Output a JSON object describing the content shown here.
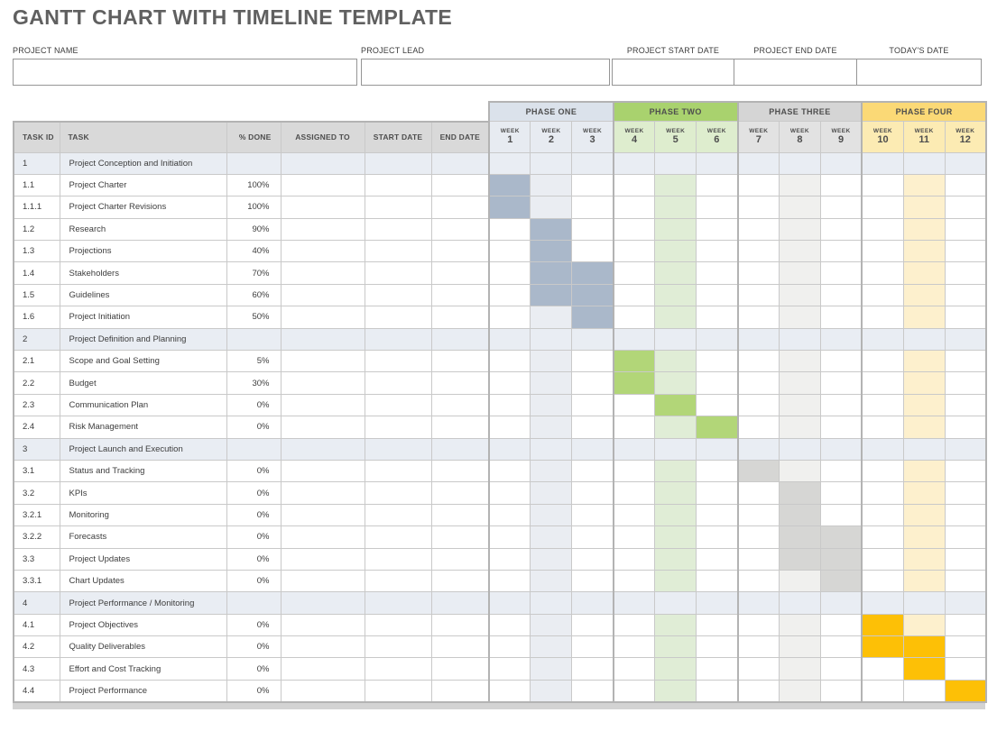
{
  "title": "GANTT CHART WITH TIMELINE TEMPLATE",
  "form": {
    "fields": [
      {
        "label": "PROJECT NAME",
        "value": ""
      },
      {
        "label": "PROJECT LEAD",
        "value": ""
      },
      {
        "label": "PROJECT START DATE",
        "value": ""
      },
      {
        "label": "PROJECT END DATE",
        "value": ""
      },
      {
        "label": "TODAY'S DATE",
        "value": ""
      }
    ]
  },
  "table": {
    "columns": [
      "TASK ID",
      "TASK",
      "% DONE",
      "ASSIGNED TO",
      "START DATE",
      "END DATE"
    ],
    "week_label": "WEEK",
    "header_bg_color": "#D9D9D9",
    "section_row_color": "#E9EDF3",
    "phases": [
      {
        "label": "PHASE ONE",
        "weeks": [
          1,
          2,
          3
        ],
        "header_color": "#DBE2EB",
        "week_color": "#E7EBF1",
        "bar_color": "#AAB8CA",
        "tint_color": "#EAEDF2"
      },
      {
        "label": "PHASE TWO",
        "weeks": [
          4,
          5,
          6
        ],
        "header_color": "#A9D26E",
        "week_color": "#DEEDCE",
        "bar_color": "#B2D678",
        "tint_color": "#E0EDD6"
      },
      {
        "label": "PHASE THREE",
        "weeks": [
          7,
          8,
          9
        ],
        "header_color": "#D5D5D5",
        "week_color": "#E2E2E2",
        "bar_color": "#D6D6D4",
        "tint_color": "#F0F0EE"
      },
      {
        "label": "PHASE FOUR",
        "weeks": [
          10,
          11,
          12
        ],
        "header_color": "#FBD976",
        "week_color": "#FCEBB3",
        "bar_color": "#FDC006",
        "tint_color": "#FDF0CD"
      }
    ],
    "rows": [
      {
        "id": "1",
        "task": "Project Conception and Initiation",
        "done": "",
        "assigned": "",
        "start": "",
        "end": "",
        "section": true,
        "cells": [
          "",
          "",
          "",
          "",
          "",
          "",
          "",
          "",
          "",
          "",
          "",
          ""
        ]
      },
      {
        "id": "1.1",
        "task": "Project Charter",
        "done": "100%",
        "assigned": "",
        "start": "",
        "end": "",
        "section": false,
        "cells": [
          "b1",
          "t1",
          "",
          "",
          "t2",
          "",
          "",
          "t3",
          "",
          "",
          "t4",
          ""
        ]
      },
      {
        "id": "1.1.1",
        "task": "Project Charter Revisions",
        "done": "100%",
        "assigned": "",
        "start": "",
        "end": "",
        "section": false,
        "cells": [
          "b1",
          "t1",
          "",
          "",
          "t2",
          "",
          "",
          "t3",
          "",
          "",
          "t4",
          ""
        ]
      },
      {
        "id": "1.2",
        "task": "Research",
        "done": "90%",
        "assigned": "",
        "start": "",
        "end": "",
        "section": false,
        "cells": [
          "",
          "b1",
          "",
          "",
          "t2",
          "",
          "",
          "t3",
          "",
          "",
          "t4",
          ""
        ]
      },
      {
        "id": "1.3",
        "task": "Projections",
        "done": "40%",
        "assigned": "",
        "start": "",
        "end": "",
        "section": false,
        "cells": [
          "",
          "b1",
          "",
          "",
          "t2",
          "",
          "",
          "t3",
          "",
          "",
          "t4",
          ""
        ]
      },
      {
        "id": "1.4",
        "task": "Stakeholders",
        "done": "70%",
        "assigned": "",
        "start": "",
        "end": "",
        "section": false,
        "cells": [
          "",
          "b1",
          "b1",
          "",
          "t2",
          "",
          "",
          "t3",
          "",
          "",
          "t4",
          ""
        ]
      },
      {
        "id": "1.5",
        "task": "Guidelines",
        "done": "60%",
        "assigned": "",
        "start": "",
        "end": "",
        "section": false,
        "cells": [
          "",
          "b1",
          "b1",
          "",
          "t2",
          "",
          "",
          "t3",
          "",
          "",
          "t4",
          ""
        ]
      },
      {
        "id": "1.6",
        "task": "Project Initiation",
        "done": "50%",
        "assigned": "",
        "start": "",
        "end": "",
        "section": false,
        "cells": [
          "",
          "t1",
          "b1",
          "",
          "t2",
          "",
          "",
          "t3",
          "",
          "",
          "t4",
          ""
        ]
      },
      {
        "id": "2",
        "task": "Project Definition and Planning",
        "done": "",
        "assigned": "",
        "start": "",
        "end": "",
        "section": true,
        "cells": [
          "",
          "",
          "",
          "",
          "",
          "",
          "",
          "",
          "",
          "",
          "",
          ""
        ]
      },
      {
        "id": "2.1",
        "task": "Scope and Goal Setting",
        "done": "5%",
        "assigned": "",
        "start": "",
        "end": "",
        "section": false,
        "cells": [
          "",
          "t1",
          "",
          "b2",
          "t2",
          "",
          "",
          "t3",
          "",
          "",
          "t4",
          ""
        ]
      },
      {
        "id": "2.2",
        "task": "Budget",
        "done": "30%",
        "assigned": "",
        "start": "",
        "end": "",
        "section": false,
        "cells": [
          "",
          "t1",
          "",
          "b2",
          "t2",
          "",
          "",
          "t3",
          "",
          "",
          "t4",
          ""
        ]
      },
      {
        "id": "2.3",
        "task": "Communication Plan",
        "done": "0%",
        "assigned": "",
        "start": "",
        "end": "",
        "section": false,
        "cells": [
          "",
          "t1",
          "",
          "",
          "b2",
          "",
          "",
          "t3",
          "",
          "",
          "t4",
          ""
        ]
      },
      {
        "id": "2.4",
        "task": "Risk Management",
        "done": "0%",
        "assigned": "",
        "start": "",
        "end": "",
        "section": false,
        "cells": [
          "",
          "t1",
          "",
          "",
          "t2",
          "b2",
          "",
          "t3",
          "",
          "",
          "t4",
          ""
        ]
      },
      {
        "id": "3",
        "task": "Project Launch and Execution",
        "done": "",
        "assigned": "",
        "start": "",
        "end": "",
        "section": true,
        "cells": [
          "",
          "",
          "",
          "",
          "",
          "",
          "",
          "",
          "",
          "",
          "",
          ""
        ]
      },
      {
        "id": "3.1",
        "task": "Status and Tracking",
        "done": "0%",
        "assigned": "",
        "start": "",
        "end": "",
        "section": false,
        "cells": [
          "",
          "t1",
          "",
          "",
          "t2",
          "",
          "b3",
          "t3",
          "",
          "",
          "t4",
          ""
        ]
      },
      {
        "id": "3.2",
        "task": "KPIs",
        "done": "0%",
        "assigned": "",
        "start": "",
        "end": "",
        "section": false,
        "cells": [
          "",
          "t1",
          "",
          "",
          "t2",
          "",
          "",
          "b3",
          "",
          "",
          "t4",
          ""
        ]
      },
      {
        "id": "3.2.1",
        "task": "Monitoring",
        "done": "0%",
        "assigned": "",
        "start": "",
        "end": "",
        "section": false,
        "cells": [
          "",
          "t1",
          "",
          "",
          "t2",
          "",
          "",
          "b3",
          "",
          "",
          "t4",
          ""
        ]
      },
      {
        "id": "3.2.2",
        "task": "Forecasts",
        "done": "0%",
        "assigned": "",
        "start": "",
        "end": "",
        "section": false,
        "cells": [
          "",
          "t1",
          "",
          "",
          "t2",
          "",
          "",
          "b3",
          "b3",
          "",
          "t4",
          ""
        ]
      },
      {
        "id": "3.3",
        "task": "Project Updates",
        "done": "0%",
        "assigned": "",
        "start": "",
        "end": "",
        "section": false,
        "cells": [
          "",
          "t1",
          "",
          "",
          "t2",
          "",
          "",
          "b3",
          "b3",
          "",
          "t4",
          ""
        ]
      },
      {
        "id": "3.3.1",
        "task": "Chart Updates",
        "done": "0%",
        "assigned": "",
        "start": "",
        "end": "",
        "section": false,
        "cells": [
          "",
          "t1",
          "",
          "",
          "t2",
          "",
          "",
          "t3",
          "b3",
          "",
          "t4",
          ""
        ]
      },
      {
        "id": "4",
        "task": "Project Performance / Monitoring",
        "done": "",
        "assigned": "",
        "start": "",
        "end": "",
        "section": true,
        "cells": [
          "",
          "",
          "",
          "",
          "",
          "",
          "",
          "",
          "",
          "",
          "",
          ""
        ]
      },
      {
        "id": "4.1",
        "task": "Project Objectives",
        "done": "0%",
        "assigned": "",
        "start": "",
        "end": "",
        "section": false,
        "cells": [
          "",
          "t1",
          "",
          "",
          "t2",
          "",
          "",
          "t3",
          "",
          "b4",
          "t4",
          ""
        ]
      },
      {
        "id": "4.2",
        "task": "Quality Deliverables",
        "done": "0%",
        "assigned": "",
        "start": "",
        "end": "",
        "section": false,
        "cells": [
          "",
          "t1",
          "",
          "",
          "t2",
          "",
          "",
          "t3",
          "",
          "b4",
          "b4",
          ""
        ]
      },
      {
        "id": "4.3",
        "task": "Effort and Cost Tracking",
        "done": "0%",
        "assigned": "",
        "start": "",
        "end": "",
        "section": false,
        "cells": [
          "",
          "t1",
          "",
          "",
          "t2",
          "",
          "",
          "t3",
          "",
          "",
          "b4",
          ""
        ]
      },
      {
        "id": "4.4",
        "task": "Project Performance",
        "done": "0%",
        "assigned": "",
        "start": "",
        "end": "",
        "section": false,
        "cells": [
          "",
          "t1",
          "",
          "",
          "t2",
          "",
          "",
          "t3",
          "",
          "",
          "",
          "b4"
        ]
      }
    ]
  }
}
